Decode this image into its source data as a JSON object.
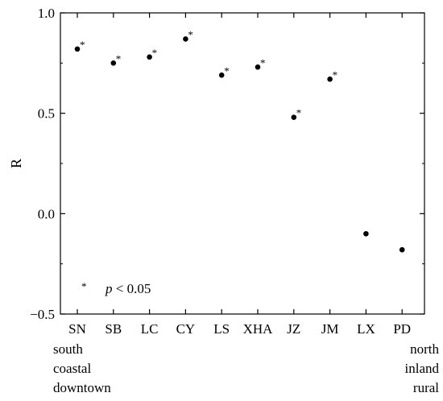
{
  "chart_data": {
    "type": "scatter",
    "title": "",
    "xlabel": "",
    "ylabel": "R",
    "ylim": [
      -0.5,
      1.0
    ],
    "y_ticks": [
      "1.0",
      "0.5",
      "0.0",
      "−0.5"
    ],
    "categories": [
      "SN",
      "SB",
      "LC",
      "CY",
      "LS",
      "XHA",
      "JZ",
      "JM",
      "LX",
      "PD"
    ],
    "values": [
      0.82,
      0.75,
      0.78,
      0.87,
      0.69,
      0.73,
      0.48,
      0.67,
      -0.1,
      -0.18
    ],
    "significant": [
      true,
      true,
      true,
      true,
      true,
      true,
      true,
      true,
      false,
      false
    ],
    "significance_marker": "*",
    "grid": false,
    "legend": {
      "marker": "*",
      "var": "p",
      "condition": " < 0.05",
      "placement": "bottom-left"
    },
    "gradient_labels": {
      "left": [
        "south",
        "coastal",
        "downtown"
      ],
      "right": [
        "north",
        "inland",
        "rural"
      ]
    }
  }
}
